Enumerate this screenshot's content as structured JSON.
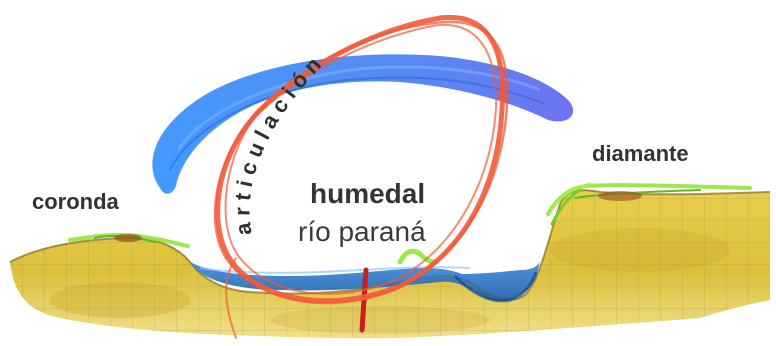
{
  "labels": {
    "left_bank": "coronda",
    "right_bank": "diamante",
    "center_title": "humedal",
    "center_subtitle": "río paraná",
    "arc_text": "articulación"
  },
  "colors": {
    "soil": "#e2c640",
    "soil_dark": "#b08a20",
    "grid": "#a08a50",
    "vegetation": "#8fe63a",
    "water_surface": "#3a7bd5",
    "water_deep": "#1f5fa8",
    "sky_arc_light": "#2f8cff",
    "sky_arc_dark": "#5a63ef",
    "loop": "#f25a38",
    "stake": "#c81e1e",
    "text": "#333333"
  }
}
